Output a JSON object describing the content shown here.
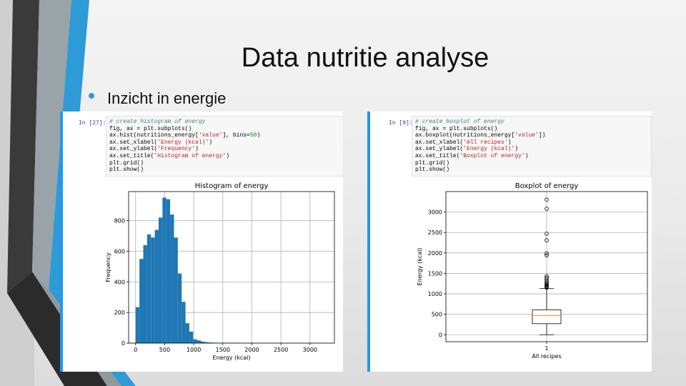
{
  "slide": {
    "title": "Data nutritie analyse",
    "bullet": "Inzicht in energie"
  },
  "colors": {
    "accent_blue": "#2e9bd6",
    "bar_blue": "#1f77b4",
    "median_orange": "#ff7f0e"
  },
  "cells": [
    {
      "prompt": "In [27]:",
      "code": [
        "# create histogram of energy",
        "fig, ax = plt.subplots()",
        "ax.hist(nutritions_energy['value'], bins=50)",
        "ax.set_xlabel('Energy (kcal)')",
        "ax.set_ylabel('Frequency')",
        "ax.set_title('Histogram of energy')",
        "plt.grid()",
        "plt.show()"
      ]
    },
    {
      "prompt": "In [9]:",
      "code": [
        "# create boxplot of energy",
        "fig, ax = plt.subplots()",
        "ax.boxplot(nutritions_energy['value'])",
        "ax.set_xlabel('All recipes')",
        "ax.set_ylabel('Energy (kcal)')",
        "ax.set_title('Boxplot of energy')",
        "plt.grid()",
        "plt.show()"
      ]
    }
  ],
  "chart_data": [
    {
      "type": "bar",
      "title": "Histogram of energy",
      "xlabel": "Energy (kcal)",
      "ylabel": "Frequency",
      "xlim": [
        -120,
        3420
      ],
      "ylim": [
        0,
        990
      ],
      "xticks": [
        0,
        500,
        1000,
        1500,
        2000,
        2500,
        3000
      ],
      "yticks": [
        0,
        200,
        400,
        600,
        800
      ],
      "grid": true,
      "bin_width": 66,
      "bin_start": 0,
      "values": [
        235,
        550,
        640,
        710,
        690,
        740,
        820,
        950,
        940,
        840,
        690,
        455,
        270,
        130,
        75,
        25,
        18,
        10,
        6,
        4,
        3,
        2,
        2,
        1,
        1,
        1,
        1,
        1,
        0,
        0,
        1,
        0,
        0,
        0,
        0,
        1,
        0,
        0,
        0,
        0,
        0,
        0,
        0,
        0,
        0,
        0,
        0,
        0,
        0,
        1
      ]
    },
    {
      "type": "box",
      "title": "Boxplot of energy",
      "xlabel": "All recipes",
      "ylabel": "Energy (kcal)",
      "xticks": [
        "1"
      ],
      "ylim": [
        -170,
        3500
      ],
      "yticks": [
        0,
        500,
        1000,
        1500,
        2000,
        2500,
        3000
      ],
      "grid": true,
      "whisker_low": 0,
      "q1": 270,
      "median": 470,
      "q3": 610,
      "whisker_high": 1130,
      "outliers": [
        3300,
        3080,
        2470,
        2310,
        1990,
        1940,
        1430,
        1390,
        1350,
        1300,
        1270,
        1240,
        1220,
        1200,
        1180,
        1160,
        1150
      ]
    }
  ]
}
